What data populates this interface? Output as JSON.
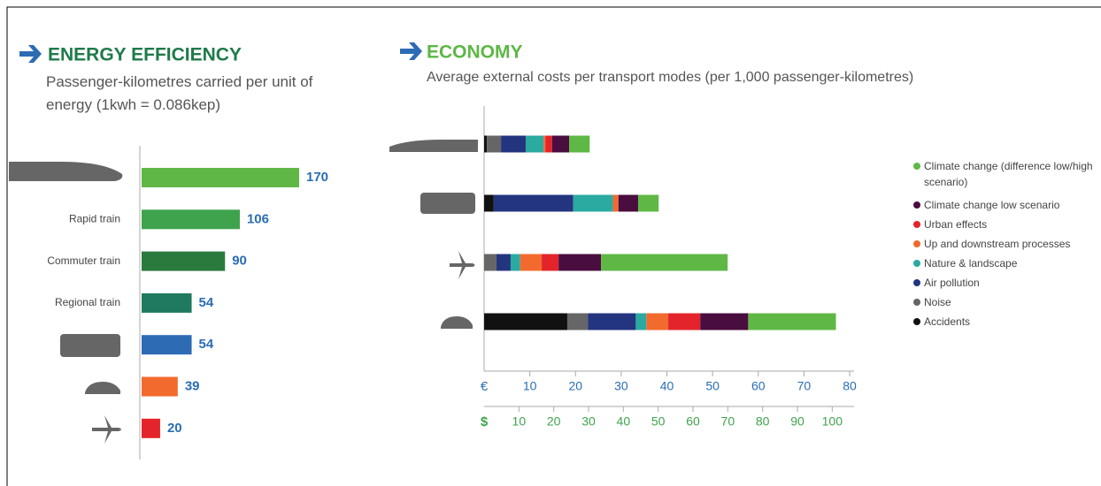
{
  "chart_data": [
    {
      "type": "bar",
      "title": "ENERGY EFFICIENCY",
      "subtitle": "Passenger-kilometres carried per unit of energy (1kwh = 0.086kep)",
      "categories": [
        null,
        "Rapid train",
        "Commuter train",
        "Regional train",
        null,
        null,
        null
      ],
      "values": [
        170,
        106,
        90,
        54,
        54,
        39,
        20
      ],
      "colors": [
        "#5fb846",
        "#3fa34d",
        "#2a7a3e",
        "#1f7a5f",
        "#2d6bb5",
        "#f26a2e",
        "#e3252b"
      ]
    },
    {
      "type": "stacked_bar",
      "title": "ECONOMY",
      "subtitle": "Average external costs per transport modes (per 1,000 passenger-kilometres)",
      "categories": [
        null,
        null,
        null,
        null
      ],
      "series": [
        {
          "name": "Accidents",
          "color": "#111111",
          "values": [
            0.6,
            2.1,
            0,
            18.2
          ]
        },
        {
          "name": "Noise",
          "color": "#666666",
          "values": [
            3.1,
            0,
            2.7,
            4.5
          ]
        },
        {
          "name": "Air pollution",
          "color": "#24357f",
          "values": [
            5.4,
            17.4,
            3.1,
            10.5
          ]
        },
        {
          "name": "Nature & landscape",
          "color": "#2aaaa0",
          "values": [
            3.9,
            8.7,
            2.1,
            2.3
          ]
        },
        {
          "name": "Up and downstream processes",
          "color": "#f26a2e",
          "values": [
            0.4,
            1.2,
            4.7,
            4.8
          ]
        },
        {
          "name": "Urban effects",
          "color": "#e3252b",
          "values": [
            1.5,
            0,
            3.7,
            7.0
          ]
        },
        {
          "name": "Climate change low scenario",
          "color": "#4a0d3f",
          "values": [
            3.7,
            4.3,
            9.3,
            10.5
          ]
        },
        {
          "name": "Climate change (difference low/high scenario)",
          "color": "#5fb846",
          "values": [
            4.5,
            4.5,
            27.7,
            19.2
          ]
        }
      ],
      "x_label": "€",
      "xlim": [
        0,
        80
      ],
      "xticks": [
        10,
        20,
        30,
        40,
        50,
        60,
        70,
        80
      ],
      "x2_label": "$",
      "x2lim": [
        0,
        105
      ],
      "x2ticks": [
        10,
        20,
        30,
        40,
        50,
        60,
        70,
        80,
        90,
        100
      ]
    }
  ]
}
